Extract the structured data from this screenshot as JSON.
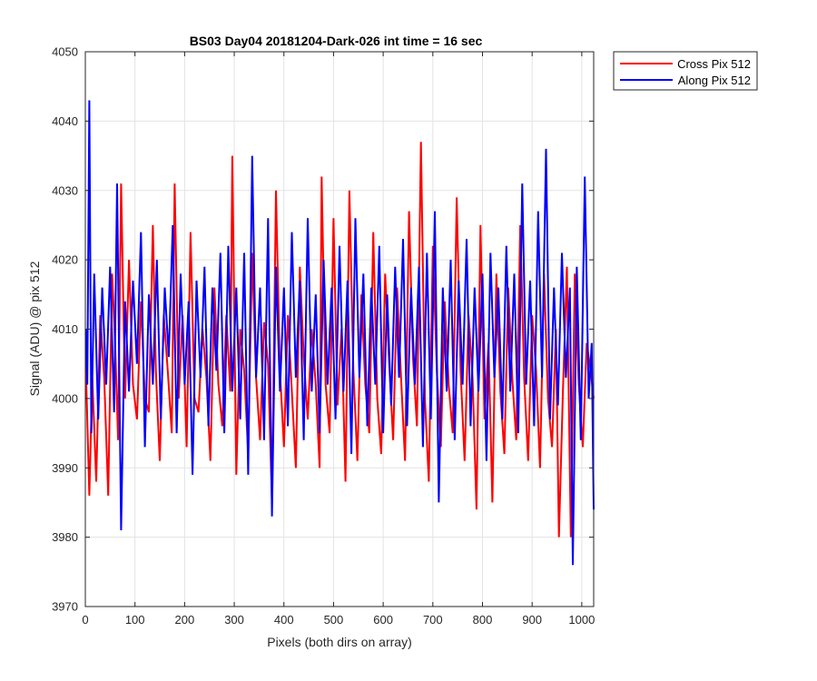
{
  "chart_data": {
    "type": "line",
    "title": "BS03 Day04 20181204-Dark-026 int time = 16 sec",
    "xlabel": "Pixels (both dirs on array)",
    "ylabel": "Signal (ADU) @ pix 512",
    "xlim": [
      0,
      1024
    ],
    "ylim": [
      3970,
      4050
    ],
    "xticks": [
      0,
      100,
      200,
      300,
      400,
      500,
      600,
      700,
      800,
      900,
      1000
    ],
    "yticks": [
      3970,
      3980,
      3990,
      4000,
      4010,
      4020,
      4030,
      4040,
      4050
    ],
    "grid": true,
    "legend_position": "outside-top-right",
    "series": [
      {
        "name": "Cross Pix 512",
        "color": "#ff0000",
        "x": [
          1,
          8,
          14,
          22,
          30,
          38,
          46,
          54,
          60,
          66,
          72,
          80,
          88,
          96,
          104,
          112,
          120,
          128,
          136,
          142,
          150,
          158,
          166,
          174,
          180,
          188,
          196,
          204,
          212,
          220,
          228,
          236,
          244,
          252,
          260,
          268,
          276,
          284,
          292,
          296,
          304,
          312,
          320,
          328,
          336,
          344,
          352,
          360,
          368,
          376,
          384,
          392,
          400,
          408,
          416,
          424,
          432,
          440,
          448,
          456,
          464,
          472,
          476,
          484,
          492,
          500,
          508,
          516,
          524,
          532,
          540,
          548,
          556,
          564,
          572,
          580,
          588,
          596,
          604,
          612,
          620,
          628,
          636,
          644,
          652,
          660,
          668,
          676,
          684,
          692,
          700,
          708,
          716,
          724,
          732,
          740,
          748,
          756,
          764,
          772,
          780,
          788,
          796,
          804,
          812,
          820,
          828,
          836,
          844,
          852,
          860,
          868,
          876,
          884,
          892,
          900,
          908,
          916,
          924,
          932,
          940,
          948,
          954,
          962,
          970,
          978,
          986,
          994,
          1002,
          1010,
          1018,
          1024
        ],
        "values": [
          4005,
          3986,
          4003,
          3988,
          4012,
          4003,
          3986,
          4018,
          4008,
          3994,
          4031,
          4000,
          4020,
          4002,
          3997,
          4014,
          4000,
          3998,
          4025,
          4004,
          3991,
          4012,
          4004,
          3995,
          4031,
          4000,
          4012,
          3993,
          4024,
          4000,
          3998,
          4010,
          4003,
          3991,
          4016,
          4002,
          3996,
          4012,
          4001,
          4035,
          3989,
          4010,
          4004,
          3992,
          4021,
          4003,
          3994,
          4011,
          4005,
          3985,
          4030,
          4004,
          3993,
          4012,
          4001,
          3990,
          4019,
          4006,
          3997,
          4010,
          4002,
          3990,
          4032,
          4002,
          3995,
          4026,
          3999,
          4010,
          3988,
          4030,
          4004,
          3991,
          4015,
          4002,
          3995,
          4024,
          4000,
          3992,
          4018,
          4005,
          3994,
          4016,
          4003,
          3991,
          4027,
          4006,
          3996,
          4037,
          4000,
          3988,
          4022,
          4004,
          3993,
          4014,
          4002,
          3995,
          4029,
          4004,
          3991,
          4012,
          4003,
          3984,
          4025,
          3997,
          4008,
          3985,
          4018,
          4001,
          3992,
          4016,
          4003,
          3994,
          4025,
          4003,
          3991,
          4012,
          4004,
          3990,
          4018,
          4000,
          3993,
          4010,
          3980,
          4001,
          4019,
          3980,
          4018,
          4002,
          3993,
          4008,
          4004,
          4000
        ]
      },
      {
        "name": "Along Pix 512",
        "color": "#0000ff",
        "x": [
          1,
          4,
          8,
          12,
          18,
          26,
          34,
          42,
          50,
          58,
          64,
          72,
          80,
          88,
          96,
          104,
          112,
          120,
          128,
          136,
          144,
          152,
          160,
          168,
          176,
          184,
          192,
          200,
          208,
          216,
          224,
          232,
          240,
          248,
          256,
          264,
          272,
          280,
          288,
          296,
          304,
          312,
          320,
          328,
          336,
          344,
          352,
          360,
          368,
          376,
          384,
          392,
          400,
          408,
          416,
          424,
          432,
          440,
          448,
          456,
          464,
          472,
          480,
          488,
          496,
          504,
          512,
          520,
          528,
          536,
          544,
          552,
          560,
          568,
          576,
          584,
          592,
          600,
          608,
          616,
          624,
          632,
          640,
          648,
          656,
          664,
          672,
          680,
          688,
          696,
          704,
          712,
          720,
          728,
          736,
          744,
          752,
          760,
          768,
          776,
          784,
          792,
          800,
          808,
          816,
          824,
          832,
          840,
          848,
          856,
          864,
          872,
          880,
          888,
          896,
          904,
          912,
          920,
          928,
          936,
          944,
          952,
          960,
          968,
          976,
          982,
          990,
          998,
          1006,
          1014,
          1020,
          1024
        ],
        "values": [
          4010,
          4002,
          4043,
          3995,
          4018,
          3997,
          4016,
          4002,
          4019,
          3998,
          4031,
          3981,
          4014,
          4001,
          4017,
          4005,
          4024,
          3993,
          4015,
          4002,
          4020,
          3997,
          4016,
          4006,
          4025,
          3995,
          4018,
          4002,
          4014,
          3989,
          4017,
          4003,
          4019,
          3996,
          4016,
          4004,
          4021,
          3995,
          4022,
          4001,
          4016,
          3997,
          4021,
          3989,
          4035,
          4003,
          4016,
          3994,
          4026,
          3983,
          4019,
          4001,
          4016,
          3996,
          4024,
          4003,
          4017,
          3994,
          4026,
          4001,
          4015,
          3995,
          4020,
          4002,
          4016,
          3997,
          4022,
          4001,
          4017,
          3992,
          4026,
          4003,
          4018,
          3996,
          4016,
          4002,
          4022,
          3995,
          4015,
          3999,
          4019,
          4003,
          4023,
          3996,
          4016,
          4002,
          4019,
          3993,
          4021,
          3997,
          4027,
          3985,
          4016,
          4001,
          4020,
          3994,
          4017,
          4002,
          4023,
          3996,
          4016,
          4001,
          4018,
          3991,
          4021,
          4003,
          4016,
          3997,
          4022,
          4001,
          4018,
          3995,
          4031,
          4002,
          4017,
          3996,
          4027,
          4003,
          4036,
          3997,
          4016,
          3999,
          4021,
          4003,
          4016,
          3976,
          4019,
          3994,
          4032,
          4000,
          4008,
          3984
        ]
      }
    ]
  }
}
